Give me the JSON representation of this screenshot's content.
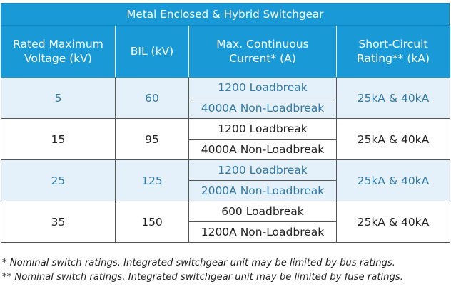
{
  "title": "Metal Enclosed & Hybrid Switchgear",
  "headers": {
    "voltage": "Rated Maximum Voltage (kV)",
    "bil": "BIL (kV)",
    "current": "Max. Continuous Current* (A)",
    "short_circuit": "Short-Circuit Rating** (kA)"
  },
  "rows": [
    {
      "voltage": "5",
      "bil": "60",
      "current_1": "1200 Loadbreak",
      "current_2": "4000A Non-Loadbreak",
      "short_circuit": "25kA & 40kA",
      "shaded": true
    },
    {
      "voltage": "15",
      "bil": "95",
      "current_1": "1200 Loadbreak",
      "current_2": "4000A Non-Loadbreak",
      "short_circuit": "25kA & 40kA",
      "shaded": false
    },
    {
      "voltage": "25",
      "bil": "125",
      "current_1": "1200 Loadbreak",
      "current_2": "2000A Non-Loadbreak",
      "short_circuit": "25kA & 40kA",
      "shaded": true
    },
    {
      "voltage": "35",
      "bil": "150",
      "current_1": "600 Loadbreak",
      "current_2": "1200A Non-Loadbreak",
      "short_circuit": "25kA & 40kA",
      "shaded": false
    }
  ],
  "footnotes": [
    "* Nominal switch ratings. Integrated switchgear unit may be limited by bus ratings.",
    "** Nominal switch ratings. Integrated switchgear unit may be limited by fuse ratings."
  ],
  "colors": {
    "header_bg": "#199ad6",
    "shade_bg": "#e5f1fa",
    "shade_text": "#2f78a8"
  }
}
